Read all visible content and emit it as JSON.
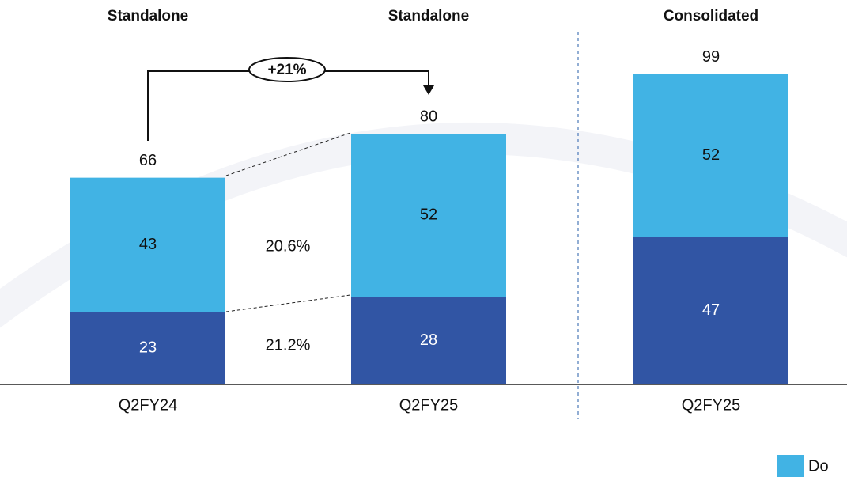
{
  "chart_data": {
    "type": "stacked_bar",
    "group_labels": [
      "Standalone",
      "Standalone",
      "Consolidated"
    ],
    "categories": [
      "Q2FY24",
      "Q2FY25",
      "Q2FY25"
    ],
    "series": [
      {
        "color": "#3155a4",
        "values": [
          23,
          28,
          47
        ]
      },
      {
        "name": "Do",
        "color": "#41b3e4",
        "values": [
          43,
          52,
          52
        ]
      }
    ],
    "totals": [
      66,
      80,
      99
    ],
    "annotations": {
      "growth_total": "+21%",
      "growth_top": "20.6%",
      "growth_bottom": "21.2%"
    },
    "ylim": [
      0,
      100
    ]
  }
}
